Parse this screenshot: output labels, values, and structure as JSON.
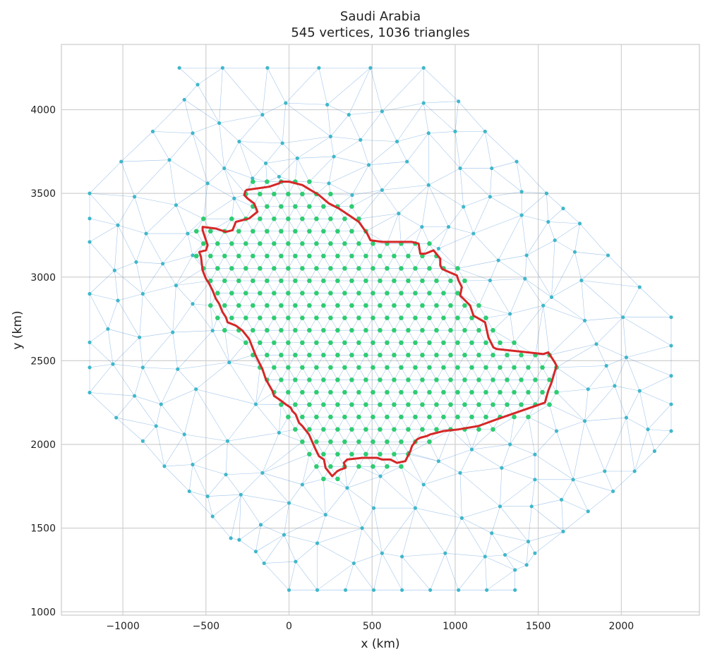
{
  "chart_data": {
    "type": "scatter",
    "title": "Saudi Arabia",
    "subtitle": "545 vertices, 1036 triangles",
    "xlabel": "x (km)",
    "ylabel": "y (km)",
    "xlim": [
      -1370,
      2470
    ],
    "ylim": [
      980,
      4390
    ],
    "xticks": [
      -1000,
      -500,
      0,
      500,
      1000,
      1500,
      2000
    ],
    "yticks": [
      1000,
      1500,
      2000,
      2500,
      3000,
      3500,
      4000
    ],
    "xtick_labels": [
      "−1000",
      "−500",
      "0",
      "500",
      "1000",
      "1500",
      "2000"
    ],
    "ytick_labels": [
      "1000",
      "1500",
      "2000",
      "2500",
      "3000",
      "3500",
      "4000"
    ],
    "grid": true,
    "colors": {
      "mesh_edge": "#4a90d9",
      "outer_vertex": "#3fb8c9",
      "inner_vertex": "#2ecc71",
      "boundary": "#d62728",
      "grid": "#d0d0d0"
    },
    "vertices_total": 545,
    "triangles_total": 1036,
    "inner_grid": {
      "dx": 85,
      "dy": 74,
      "x0": -600,
      "y0": 1720
    },
    "outer_ring": [
      [
        -660,
        4250
      ],
      [
        -400,
        4250
      ],
      [
        -130,
        4250
      ],
      [
        180,
        4250
      ],
      [
        490,
        4250
      ],
      [
        810,
        4250
      ],
      [
        1020,
        4050
      ],
      [
        1180,
        3870
      ],
      [
        1370,
        3690
      ],
      [
        1550,
        3500
      ],
      [
        1750,
        3320
      ],
      [
        1920,
        3130
      ],
      [
        2110,
        2940
      ],
      [
        2300,
        2760
      ],
      [
        2300,
        2590
      ],
      [
        2300,
        2410
      ],
      [
        2300,
        2240
      ],
      [
        2300,
        2080
      ],
      [
        2200,
        1960
      ],
      [
        2080,
        1840
      ],
      [
        1950,
        1720
      ],
      [
        1800,
        1600
      ],
      [
        1650,
        1480
      ],
      [
        1480,
        1350
      ],
      [
        1360,
        1250
      ],
      [
        1360,
        1130
      ],
      [
        1190,
        1130
      ],
      [
        1020,
        1130
      ],
      [
        850,
        1130
      ],
      [
        680,
        1130
      ],
      [
        510,
        1130
      ],
      [
        340,
        1130
      ],
      [
        170,
        1130
      ],
      [
        0,
        1130
      ],
      [
        -150,
        1290
      ],
      [
        -300,
        1430
      ],
      [
        -460,
        1570
      ],
      [
        -600,
        1720
      ],
      [
        -750,
        1870
      ],
      [
        -880,
        2020
      ],
      [
        -1040,
        2160
      ],
      [
        -1200,
        2310
      ],
      [
        -1200,
        2460
      ],
      [
        -1200,
        2610
      ],
      [
        -1200,
        2900
      ],
      [
        -1200,
        3210
      ],
      [
        -1200,
        3350
      ],
      [
        -1200,
        3500
      ],
      [
        -1010,
        3690
      ],
      [
        -820,
        3870
      ],
      [
        -630,
        4060
      ],
      [
        -550,
        4150
      ]
    ],
    "mid_vertices": [
      [
        -420,
        3920
      ],
      [
        -160,
        3970
      ],
      [
        -20,
        4040
      ],
      [
        230,
        4030
      ],
      [
        360,
        3970
      ],
      [
        560,
        3990
      ],
      [
        810,
        4040
      ],
      [
        -580,
        3860
      ],
      [
        -300,
        3810
      ],
      [
        -40,
        3800
      ],
      [
        250,
        3840
      ],
      [
        430,
        3820
      ],
      [
        650,
        3810
      ],
      [
        840,
        3860
      ],
      [
        1000,
        3870
      ],
      [
        -720,
        3700
      ],
      [
        -390,
        3650
      ],
      [
        -140,
        3680
      ],
      [
        50,
        3710
      ],
      [
        270,
        3720
      ],
      [
        480,
        3670
      ],
      [
        710,
        3690
      ],
      [
        1030,
        3650
      ],
      [
        1220,
        3650
      ],
      [
        -930,
        3480
      ],
      [
        -680,
        3430
      ],
      [
        -490,
        3560
      ],
      [
        -330,
        3470
      ],
      [
        560,
        3520
      ],
      [
        840,
        3550
      ],
      [
        1210,
        3480
      ],
      [
        1400,
        3510
      ],
      [
        -1030,
        3310
      ],
      [
        -860,
        3260
      ],
      [
        -610,
        3260
      ],
      [
        -580,
        3130
      ],
      [
        960,
        3300
      ],
      [
        1110,
        3260
      ],
      [
        1400,
        3370
      ],
      [
        1560,
        3330
      ],
      [
        1650,
        3410
      ],
      [
        -1050,
        3040
      ],
      [
        -920,
        3090
      ],
      [
        -760,
        3080
      ],
      [
        1260,
        3100
      ],
      [
        1430,
        3130
      ],
      [
        1600,
        3220
      ],
      [
        1720,
        3150
      ],
      [
        -1030,
        2860
      ],
      [
        -880,
        2900
      ],
      [
        -680,
        2950
      ],
      [
        -580,
        2840
      ],
      [
        1210,
        2980
      ],
      [
        1420,
        2990
      ],
      [
        1580,
        2880
      ],
      [
        1760,
        2980
      ],
      [
        -1090,
        2690
      ],
      [
        -900,
        2640
      ],
      [
        -700,
        2670
      ],
      [
        -460,
        2680
      ],
      [
        1330,
        2780
      ],
      [
        1530,
        2830
      ],
      [
        1780,
        2740
      ],
      [
        2010,
        2760
      ],
      [
        -1060,
        2480
      ],
      [
        -880,
        2460
      ],
      [
        -670,
        2450
      ],
      [
        -360,
        2490
      ],
      [
        1850,
        2600
      ],
      [
        1910,
        2470
      ],
      [
        2030,
        2520
      ],
      [
        -930,
        2290
      ],
      [
        -770,
        2240
      ],
      [
        -560,
        2330
      ],
      [
        -200,
        2240
      ],
      [
        1800,
        2330
      ],
      [
        1960,
        2350
      ],
      [
        2110,
        2320
      ],
      [
        -800,
        2110
      ],
      [
        -630,
        2060
      ],
      [
        -370,
        2020
      ],
      [
        -60,
        2070
      ],
      [
        1610,
        2080
      ],
      [
        1780,
        2140
      ],
      [
        2030,
        2160
      ],
      [
        2160,
        2090
      ],
      [
        -580,
        1880
      ],
      [
        -380,
        1820
      ],
      [
        -160,
        1830
      ],
      [
        80,
        1760
      ],
      [
        1030,
        1830
      ],
      [
        1280,
        1860
      ],
      [
        1480,
        1790
      ],
      [
        1710,
        1790
      ],
      [
        1900,
        1840
      ],
      [
        -490,
        1690
      ],
      [
        -290,
        1700
      ],
      [
        0,
        1650
      ],
      [
        220,
        1580
      ],
      [
        510,
        1620
      ],
      [
        760,
        1620
      ],
      [
        1040,
        1560
      ],
      [
        1270,
        1630
      ],
      [
        1460,
        1630
      ],
      [
        1640,
        1670
      ],
      [
        -350,
        1440
      ],
      [
        -170,
        1520
      ],
      [
        -30,
        1460
      ],
      [
        170,
        1410
      ],
      [
        440,
        1500
      ],
      [
        680,
        1330
      ],
      [
        940,
        1350
      ],
      [
        1220,
        1470
      ],
      [
        1440,
        1420
      ],
      [
        -200,
        1360
      ],
      [
        40,
        1300
      ],
      [
        390,
        1290
      ],
      [
        560,
        1350
      ],
      [
        1180,
        1330
      ],
      [
        1300,
        1340
      ],
      [
        1430,
        1280
      ],
      [
        720,
        1950
      ],
      [
        900,
        1900
      ],
      [
        1100,
        1970
      ],
      [
        1330,
        2000
      ],
      [
        1480,
        1940
      ],
      [
        550,
        1810
      ],
      [
        810,
        1760
      ],
      [
        350,
        1740
      ],
      [
        900,
        3170
      ],
      [
        1050,
        3420
      ],
      [
        660,
        3380
      ],
      [
        800,
        3300
      ],
      [
        380,
        3490
      ],
      [
        240,
        3560
      ],
      [
        -220,
        3590
      ],
      [
        -60,
        3600
      ]
    ],
    "boundary": [
      [
        -260,
        3520
      ],
      [
        -120,
        3540
      ],
      [
        -60,
        3560
      ],
      [
        -50,
        3570
      ],
      [
        0,
        3570
      ],
      [
        80,
        3550
      ],
      [
        180,
        3490
      ],
      [
        240,
        3440
      ],
      [
        300,
        3410
      ],
      [
        360,
        3370
      ],
      [
        420,
        3330
      ],
      [
        470,
        3260
      ],
      [
        490,
        3220
      ],
      [
        560,
        3210
      ],
      [
        740,
        3210
      ],
      [
        780,
        3200
      ],
      [
        790,
        3140
      ],
      [
        820,
        3140
      ],
      [
        870,
        3160
      ],
      [
        910,
        3110
      ],
      [
        910,
        3070
      ],
      [
        920,
        3050
      ],
      [
        940,
        3040
      ],
      [
        1010,
        3010
      ],
      [
        1020,
        2980
      ],
      [
        1040,
        2940
      ],
      [
        1030,
        2890
      ],
      [
        1060,
        2860
      ],
      [
        1090,
        2830
      ],
      [
        1100,
        2800
      ],
      [
        1110,
        2770
      ],
      [
        1180,
        2730
      ],
      [
        1200,
        2640
      ],
      [
        1230,
        2580
      ],
      [
        1250,
        2570
      ],
      [
        1530,
        2540
      ],
      [
        1560,
        2550
      ],
      [
        1600,
        2490
      ],
      [
        1610,
        2470
      ],
      [
        1580,
        2370
      ],
      [
        1560,
        2320
      ],
      [
        1540,
        2250
      ],
      [
        1250,
        2150
      ],
      [
        1140,
        2110
      ],
      [
        1020,
        2090
      ],
      [
        930,
        2080
      ],
      [
        850,
        2060
      ],
      [
        830,
        2050
      ],
      [
        790,
        2040
      ],
      [
        770,
        2030
      ],
      [
        740,
        1990
      ],
      [
        730,
        1960
      ],
      [
        700,
        1900
      ],
      [
        650,
        1890
      ],
      [
        610,
        1910
      ],
      [
        560,
        1910
      ],
      [
        530,
        1920
      ],
      [
        510,
        1920
      ],
      [
        440,
        1920
      ],
      [
        350,
        1910
      ],
      [
        330,
        1890
      ],
      [
        340,
        1860
      ],
      [
        310,
        1850
      ],
      [
        290,
        1840
      ],
      [
        260,
        1810
      ],
      [
        220,
        1860
      ],
      [
        210,
        1910
      ],
      [
        180,
        1930
      ],
      [
        160,
        1970
      ],
      [
        120,
        2060
      ],
      [
        80,
        2110
      ],
      [
        60,
        2130
      ],
      [
        40,
        2180
      ],
      [
        20,
        2200
      ],
      [
        10,
        2220
      ],
      [
        -20,
        2240
      ],
      [
        -60,
        2270
      ],
      [
        -90,
        2290
      ],
      [
        -100,
        2320
      ],
      [
        -140,
        2390
      ],
      [
        -160,
        2450
      ],
      [
        -200,
        2530
      ],
      [
        -240,
        2630
      ],
      [
        -280,
        2680
      ],
      [
        -320,
        2710
      ],
      [
        -370,
        2730
      ],
      [
        -380,
        2760
      ],
      [
        -400,
        2790
      ],
      [
        -420,
        2840
      ],
      [
        -440,
        2870
      ],
      [
        -460,
        2920
      ],
      [
        -480,
        2960
      ],
      [
        -500,
        2990
      ],
      [
        -520,
        3040
      ],
      [
        -530,
        3120
      ],
      [
        -540,
        3150
      ],
      [
        -500,
        3160
      ],
      [
        -490,
        3190
      ],
      [
        -520,
        3280
      ],
      [
        -520,
        3300
      ],
      [
        -440,
        3290
      ],
      [
        -380,
        3270
      ],
      [
        -340,
        3280
      ],
      [
        -320,
        3330
      ],
      [
        -240,
        3350
      ],
      [
        -190,
        3390
      ],
      [
        -210,
        3440
      ],
      [
        -250,
        3470
      ],
      [
        -270,
        3490
      ],
      [
        -260,
        3520
      ]
    ]
  }
}
